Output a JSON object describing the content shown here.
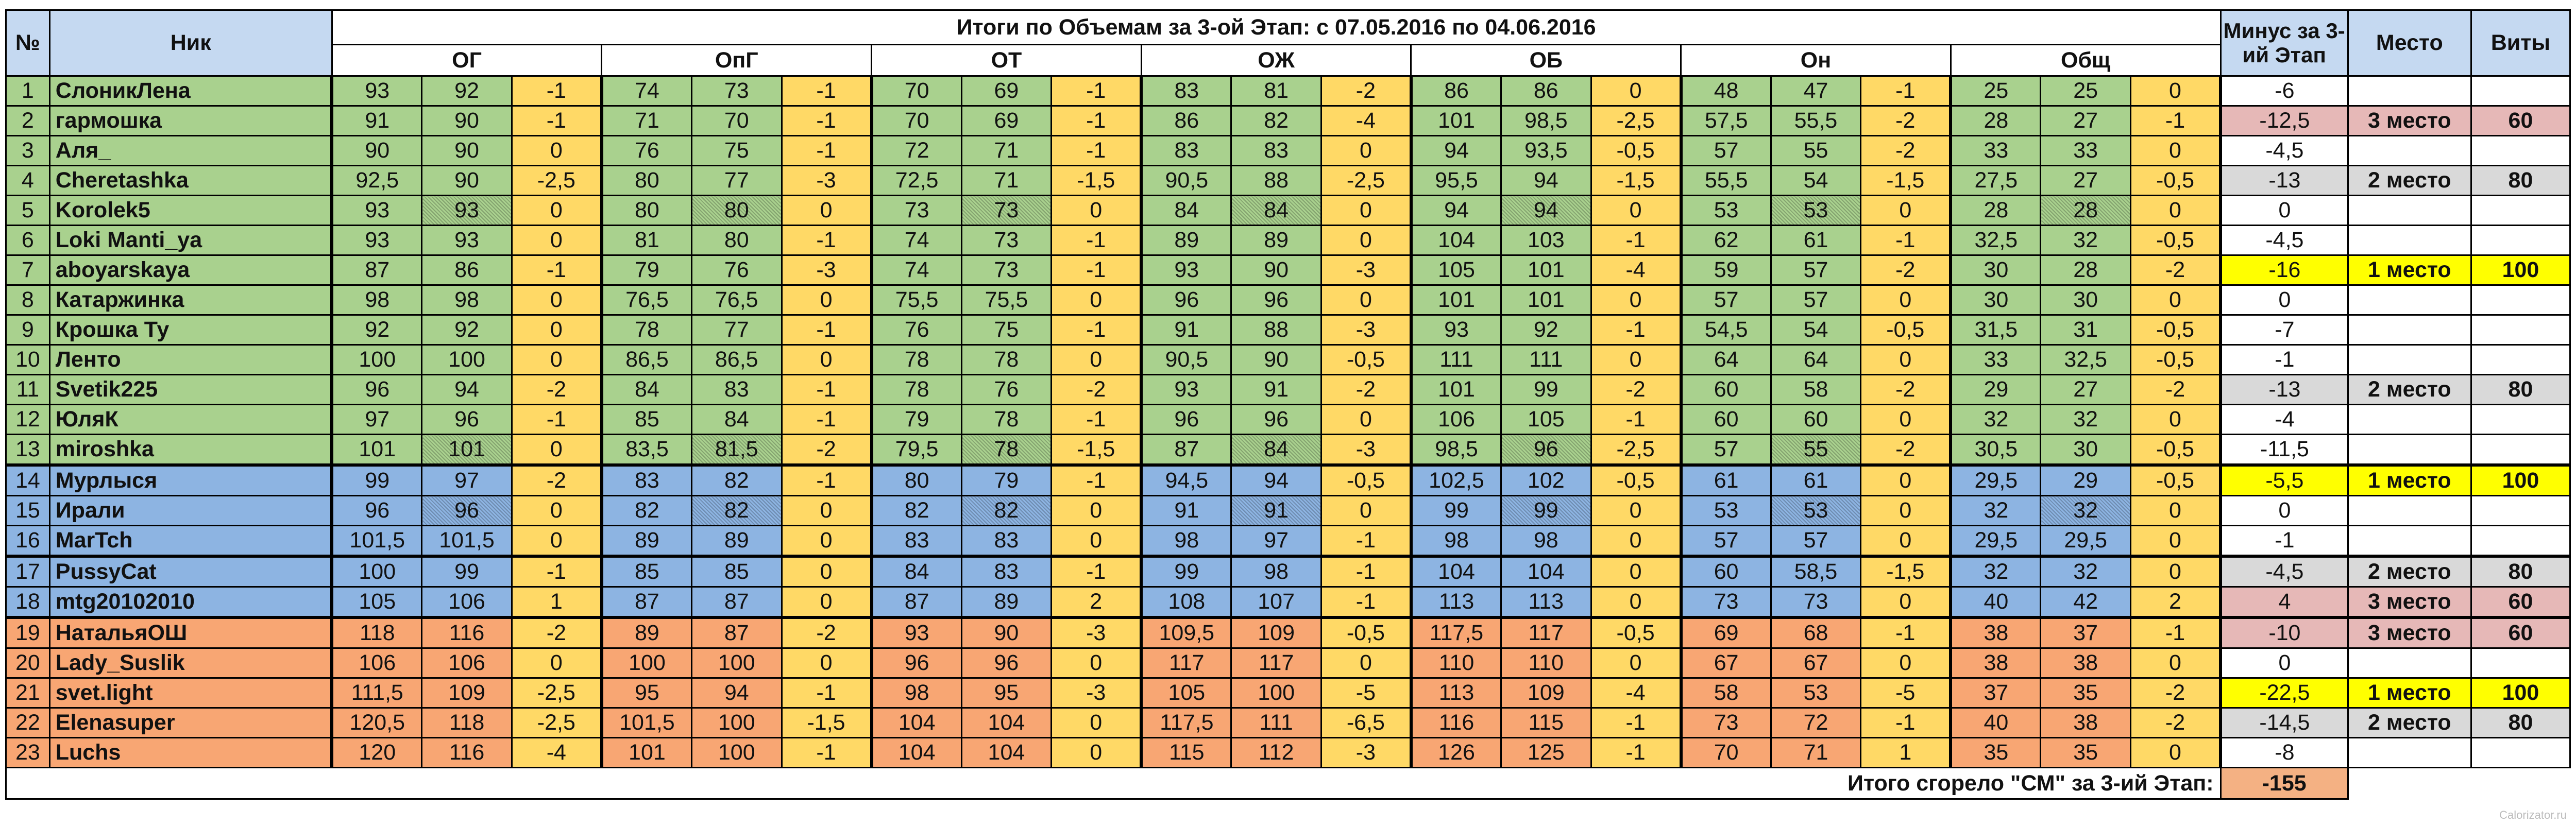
{
  "headers": {
    "num": "№",
    "nick": "Ник",
    "title": "Итоги по Объемам за 3-ой Этап: с 07.05.2016 по 04.06.2016",
    "minus": "Минус за 3-ий Этап",
    "place": "Место",
    "vity": "Виты",
    "groups": [
      "ОГ",
      "ОпГ",
      "ОТ",
      "ОЖ",
      "ОБ",
      "Он",
      "Общ"
    ]
  },
  "colors": {
    "green": "#a9d18e",
    "blue": "#8db4e2",
    "orange": "#f8a673",
    "yellow_diff": "#ffd966",
    "header_blue": "#c5d9f1",
    "hl_yellow": "#ffff00",
    "hl_pink": "#e6b8b7",
    "hl_gray": "#d9d9d9",
    "footer_orange": "#f4b183"
  },
  "rows": [
    {
      "n": "1",
      "nick": "СлоникЛена",
      "group": "green",
      "v": [
        [
          "93",
          "92",
          "-1"
        ],
        [
          "74",
          "73",
          "-1"
        ],
        [
          "70",
          "69",
          "-1"
        ],
        [
          "83",
          "81",
          "-2"
        ],
        [
          "86",
          "86",
          "0"
        ],
        [
          "48",
          "47",
          "-1"
        ],
        [
          "25",
          "25",
          "0"
        ]
      ],
      "minus": "-6",
      "place": "",
      "vity": "",
      "hl": ""
    },
    {
      "n": "2",
      "nick": "гармошка",
      "group": "green",
      "v": [
        [
          "91",
          "90",
          "-1"
        ],
        [
          "71",
          "70",
          "-1"
        ],
        [
          "70",
          "69",
          "-1"
        ],
        [
          "86",
          "82",
          "-4"
        ],
        [
          "101",
          "98,5",
          "-2,5"
        ],
        [
          "57,5",
          "55,5",
          "-2"
        ],
        [
          "28",
          "27",
          "-1"
        ]
      ],
      "minus": "-12,5",
      "place": "3 место",
      "vity": "60",
      "hl": "pink"
    },
    {
      "n": "3",
      "nick": "Аля_",
      "group": "green",
      "v": [
        [
          "90",
          "90",
          "0"
        ],
        [
          "76",
          "75",
          "-1"
        ],
        [
          "72",
          "71",
          "-1"
        ],
        [
          "83",
          "83",
          "0"
        ],
        [
          "94",
          "93,5",
          "-0,5"
        ],
        [
          "57",
          "55",
          "-2"
        ],
        [
          "33",
          "33",
          "0"
        ]
      ],
      "minus": "-4,5",
      "place": "",
      "vity": "",
      "hl": ""
    },
    {
      "n": "4",
      "nick": "Cheretashka",
      "group": "green",
      "v": [
        [
          "92,5",
          "90",
          "-2,5"
        ],
        [
          "80",
          "77",
          "-3"
        ],
        [
          "72,5",
          "71",
          "-1,5"
        ],
        [
          "90,5",
          "88",
          "-2,5"
        ],
        [
          "95,5",
          "94",
          "-1,5"
        ],
        [
          "55,5",
          "54",
          "-1,5"
        ],
        [
          "27,5",
          "27",
          "-0,5"
        ]
      ],
      "minus": "-13",
      "place": "2 место",
      "vity": "80",
      "hl": "gray"
    },
    {
      "n": "5",
      "nick": "Korolek5",
      "group": "green",
      "hatch": true,
      "v": [
        [
          "93",
          "93",
          "0"
        ],
        [
          "80",
          "80",
          "0"
        ],
        [
          "73",
          "73",
          "0"
        ],
        [
          "84",
          "84",
          "0"
        ],
        [
          "94",
          "94",
          "0"
        ],
        [
          "53",
          "53",
          "0"
        ],
        [
          "28",
          "28",
          "0"
        ]
      ],
      "minus": "0",
      "place": "",
      "vity": "",
      "hl": ""
    },
    {
      "n": "6",
      "nick": "Loki Manti_ya",
      "group": "green",
      "v": [
        [
          "93",
          "93",
          "0"
        ],
        [
          "81",
          "80",
          "-1"
        ],
        [
          "74",
          "73",
          "-1"
        ],
        [
          "89",
          "89",
          "0"
        ],
        [
          "104",
          "103",
          "-1"
        ],
        [
          "62",
          "61",
          "-1"
        ],
        [
          "32,5",
          "32",
          "-0,5"
        ]
      ],
      "minus": "-4,5",
      "place": "",
      "vity": "",
      "hl": ""
    },
    {
      "n": "7",
      "nick": "aboyarskaya",
      "group": "green",
      "v": [
        [
          "87",
          "86",
          "-1"
        ],
        [
          "79",
          "76",
          "-3"
        ],
        [
          "74",
          "73",
          "-1"
        ],
        [
          "93",
          "90",
          "-3"
        ],
        [
          "105",
          "101",
          "-4"
        ],
        [
          "59",
          "57",
          "-2"
        ],
        [
          "30",
          "28",
          "-2"
        ]
      ],
      "minus": "-16",
      "place": "1 место",
      "vity": "100",
      "hl": "yellow"
    },
    {
      "n": "8",
      "nick": "Катаржинка",
      "group": "green",
      "v": [
        [
          "98",
          "98",
          "0"
        ],
        [
          "76,5",
          "76,5",
          "0"
        ],
        [
          "75,5",
          "75,5",
          "0"
        ],
        [
          "96",
          "96",
          "0"
        ],
        [
          "101",
          "101",
          "0"
        ],
        [
          "57",
          "57",
          "0"
        ],
        [
          "30",
          "30",
          "0"
        ]
      ],
      "minus": "0",
      "place": "",
      "vity": "",
      "hl": ""
    },
    {
      "n": "9",
      "nick": "Крошка Ту",
      "group": "green",
      "v": [
        [
          "92",
          "92",
          "0"
        ],
        [
          "78",
          "77",
          "-1"
        ],
        [
          "76",
          "75",
          "-1"
        ],
        [
          "91",
          "88",
          "-3"
        ],
        [
          "93",
          "92",
          "-1"
        ],
        [
          "54,5",
          "54",
          "-0,5"
        ],
        [
          "31,5",
          "31",
          "-0,5"
        ]
      ],
      "minus": "-7",
      "place": "",
      "vity": "",
      "hl": ""
    },
    {
      "n": "10",
      "nick": "Ленто",
      "group": "green",
      "v": [
        [
          "100",
          "100",
          "0"
        ],
        [
          "86,5",
          "86,5",
          "0"
        ],
        [
          "78",
          "78",
          "0"
        ],
        [
          "90,5",
          "90",
          "-0,5"
        ],
        [
          "111",
          "111",
          "0"
        ],
        [
          "64",
          "64",
          "0"
        ],
        [
          "33",
          "32,5",
          "-0,5"
        ]
      ],
      "minus": "-1",
      "place": "",
      "vity": "",
      "hl": ""
    },
    {
      "n": "11",
      "nick": "Svetik225",
      "group": "green",
      "v": [
        [
          "96",
          "94",
          "-2"
        ],
        [
          "84",
          "83",
          "-1"
        ],
        [
          "78",
          "76",
          "-2"
        ],
        [
          "93",
          "91",
          "-2"
        ],
        [
          "101",
          "99",
          "-2"
        ],
        [
          "60",
          "58",
          "-2"
        ],
        [
          "29",
          "27",
          "-2"
        ]
      ],
      "minus": "-13",
      "place": "2 место",
      "vity": "80",
      "hl": "gray"
    },
    {
      "n": "12",
      "nick": "ЮляК",
      "group": "green",
      "v": [
        [
          "97",
          "96",
          "-1"
        ],
        [
          "85",
          "84",
          "-1"
        ],
        [
          "79",
          "78",
          "-1"
        ],
        [
          "96",
          "96",
          "0"
        ],
        [
          "106",
          "105",
          "-1"
        ],
        [
          "60",
          "60",
          "0"
        ],
        [
          "32",
          "32",
          "0"
        ]
      ],
      "minus": "-4",
      "place": "",
      "vity": "",
      "hl": ""
    },
    {
      "n": "13",
      "nick": "miroshka",
      "group": "green",
      "hatch": true,
      "v": [
        [
          "101",
          "101",
          "0"
        ],
        [
          "83,5",
          "81,5",
          "-2"
        ],
        [
          "79,5",
          "78",
          "-1,5"
        ],
        [
          "87",
          "84",
          "-3"
        ],
        [
          "98,5",
          "96",
          "-2,5"
        ],
        [
          "57",
          "55",
          "-2"
        ],
        [
          "30,5",
          "30",
          "-0,5"
        ]
      ],
      "minus": "-11,5",
      "place": "",
      "vity": "",
      "hl": ""
    },
    {
      "n": "14",
      "nick": "Мурлыся",
      "group": "blue",
      "v": [
        [
          "99",
          "97",
          "-2"
        ],
        [
          "83",
          "82",
          "-1"
        ],
        [
          "80",
          "79",
          "-1"
        ],
        [
          "94,5",
          "94",
          "-0,5"
        ],
        [
          "102,5",
          "102",
          "-0,5"
        ],
        [
          "61",
          "61",
          "0"
        ],
        [
          "29,5",
          "29",
          "-0,5"
        ]
      ],
      "minus": "-5,5",
      "place": "1 место",
      "vity": "100",
      "hl": "yellow"
    },
    {
      "n": "15",
      "nick": "Ирали",
      "group": "blue",
      "hatch": true,
      "v": [
        [
          "96",
          "96",
          "0"
        ],
        [
          "82",
          "82",
          "0"
        ],
        [
          "82",
          "82",
          "0"
        ],
        [
          "91",
          "91",
          "0"
        ],
        [
          "99",
          "99",
          "0"
        ],
        [
          "53",
          "53",
          "0"
        ],
        [
          "32",
          "32",
          "0"
        ]
      ],
      "minus": "0",
      "place": "",
      "vity": "",
      "hl": ""
    },
    {
      "n": "16",
      "nick": "MarTch",
      "group": "blue",
      "v": [
        [
          "101,5",
          "101,5",
          "0"
        ],
        [
          "89",
          "89",
          "0"
        ],
        [
          "83",
          "83",
          "0"
        ],
        [
          "98",
          "97",
          "-1"
        ],
        [
          "98",
          "98",
          "0"
        ],
        [
          "57",
          "57",
          "0"
        ],
        [
          "29,5",
          "29,5",
          "0"
        ]
      ],
      "minus": "-1",
      "place": "",
      "vity": "",
      "hl": ""
    },
    {
      "n": "17",
      "nick": "PussyCat",
      "group": "blue",
      "v": [
        [
          "100",
          "99",
          "-1"
        ],
        [
          "85",
          "85",
          "0"
        ],
        [
          "84",
          "83",
          "-1"
        ],
        [
          "99",
          "98",
          "-1"
        ],
        [
          "104",
          "104",
          "0"
        ],
        [
          "60",
          "58,5",
          "-1,5"
        ],
        [
          "32",
          "32",
          "0"
        ]
      ],
      "minus": "-4,5",
      "place": "2 место",
      "vity": "80",
      "hl": "gray"
    },
    {
      "n": "18",
      "nick": "mtg20102010",
      "group": "blue",
      "v": [
        [
          "105",
          "106",
          "1"
        ],
        [
          "87",
          "87",
          "0"
        ],
        [
          "87",
          "89",
          "2"
        ],
        [
          "108",
          "107",
          "-1"
        ],
        [
          "113",
          "113",
          "0"
        ],
        [
          "73",
          "73",
          "0"
        ],
        [
          "40",
          "42",
          "2"
        ]
      ],
      "minus": "4",
      "place": "3 место",
      "vity": "60",
      "hl": "pink"
    },
    {
      "n": "19",
      "nick": "НатальяОШ",
      "group": "orange",
      "v": [
        [
          "118",
          "116",
          "-2"
        ],
        [
          "89",
          "87",
          "-2"
        ],
        [
          "93",
          "90",
          "-3"
        ],
        [
          "109,5",
          "109",
          "-0,5"
        ],
        [
          "117,5",
          "117",
          "-0,5"
        ],
        [
          "69",
          "68",
          "-1"
        ],
        [
          "38",
          "37",
          "-1"
        ]
      ],
      "minus": "-10",
      "place": "3 место",
      "vity": "60",
      "hl": "pink"
    },
    {
      "n": "20",
      "nick": "Lady_Suslik",
      "group": "orange",
      "v": [
        [
          "106",
          "106",
          "0"
        ],
        [
          "100",
          "100",
          "0"
        ],
        [
          "96",
          "96",
          "0"
        ],
        [
          "117",
          "117",
          "0"
        ],
        [
          "110",
          "110",
          "0"
        ],
        [
          "67",
          "67",
          "0"
        ],
        [
          "38",
          "38",
          "0"
        ]
      ],
      "minus": "0",
      "place": "",
      "vity": "",
      "hl": ""
    },
    {
      "n": "21",
      "nick": "svet.light",
      "group": "orange",
      "v": [
        [
          "111,5",
          "109",
          "-2,5"
        ],
        [
          "95",
          "94",
          "-1"
        ],
        [
          "98",
          "95",
          "-3"
        ],
        [
          "105",
          "100",
          "-5"
        ],
        [
          "113",
          "109",
          "-4"
        ],
        [
          "58",
          "53",
          "-5"
        ],
        [
          "37",
          "35",
          "-2"
        ]
      ],
      "minus": "-22,5",
      "place": "1 место",
      "vity": "100",
      "hl": "yellow"
    },
    {
      "n": "22",
      "nick": "Elenasuper",
      "group": "orange",
      "v": [
        [
          "120,5",
          "118",
          "-2,5"
        ],
        [
          "101,5",
          "100",
          "-1,5"
        ],
        [
          "104",
          "104",
          "0"
        ],
        [
          "117,5",
          "111",
          "-6,5"
        ],
        [
          "116",
          "115",
          "-1"
        ],
        [
          "73",
          "72",
          "-1"
        ],
        [
          "40",
          "38",
          "-2"
        ]
      ],
      "minus": "-14,5",
      "place": "2 место",
      "vity": "80",
      "hl": "gray"
    },
    {
      "n": "23",
      "nick": "Luchs",
      "group": "orange",
      "v": [
        [
          "120",
          "116",
          "-4"
        ],
        [
          "101",
          "100",
          "-1"
        ],
        [
          "104",
          "104",
          "0"
        ],
        [
          "115",
          "112",
          "-3"
        ],
        [
          "126",
          "125",
          "-1"
        ],
        [
          "70",
          "71",
          "1"
        ],
        [
          "35",
          "35",
          "0"
        ]
      ],
      "minus": "-8",
      "place": "",
      "vity": "",
      "hl": ""
    }
  ],
  "footer": {
    "label": "Итого сгорело \"СМ\" за 3-ий Этап:",
    "total": "-155"
  }
}
